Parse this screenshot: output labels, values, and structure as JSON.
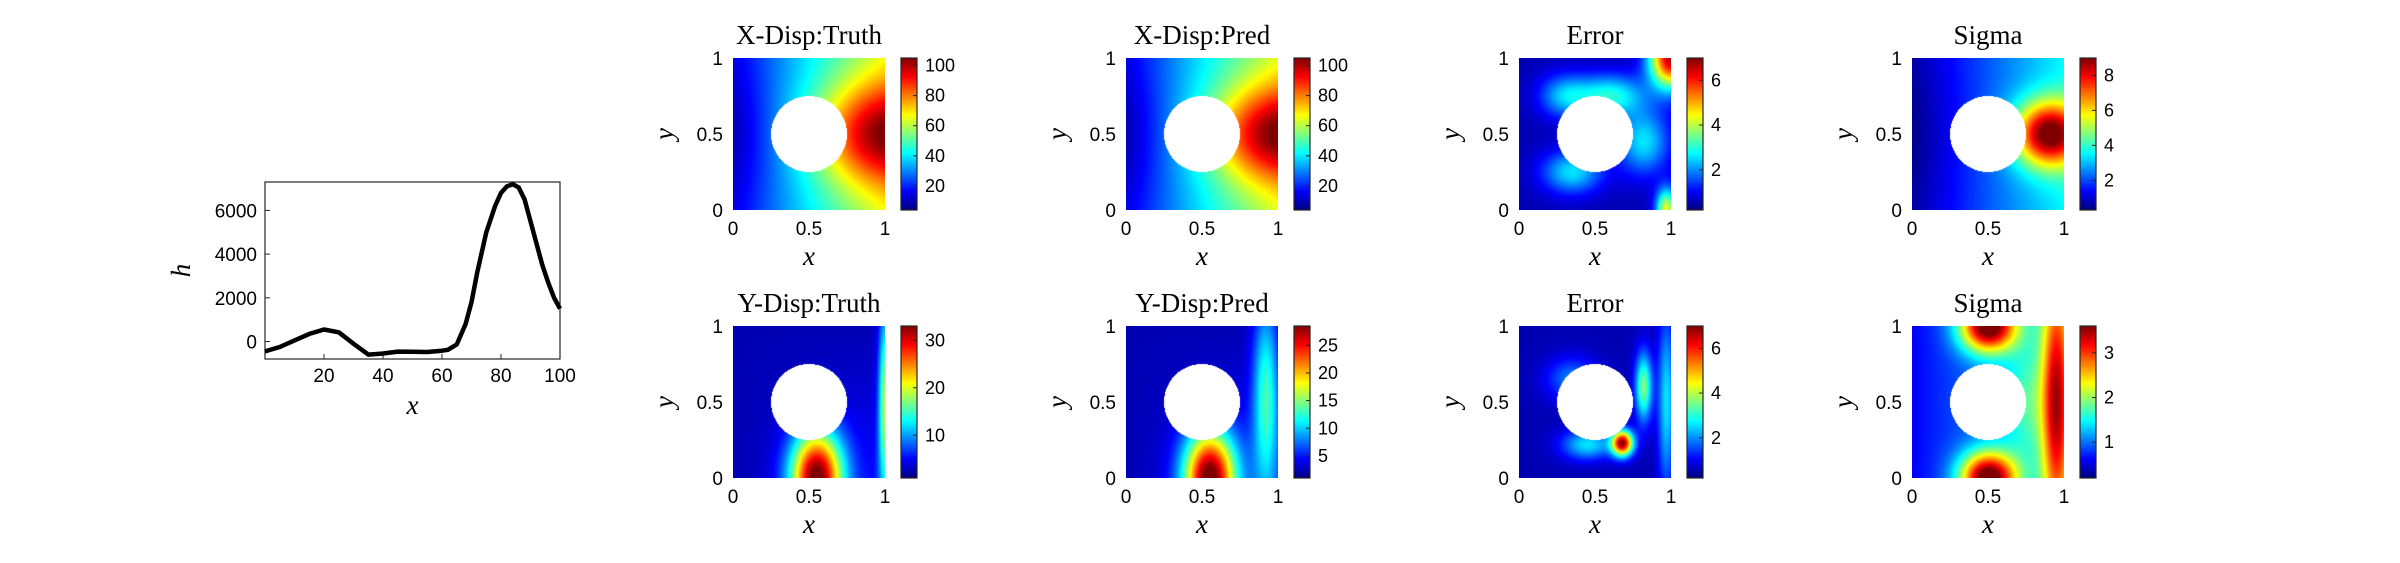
{
  "chart_data": [
    {
      "type": "line",
      "title": "",
      "xlabel": "x",
      "ylabel": "h",
      "xlim": [
        0,
        100
      ],
      "ylim": [
        -800,
        7300
      ],
      "xticks": [
        "20",
        "40",
        "60",
        "80",
        "100"
      ],
      "yticks": [
        "0",
        "2000",
        "4000",
        "6000"
      ],
      "series": [
        {
          "color": "#000000",
          "x": [
            0,
            5,
            10,
            15,
            20,
            25,
            30,
            35,
            40,
            45,
            50,
            55,
            60,
            62,
            65,
            68,
            70,
            72,
            75,
            78,
            80,
            82,
            84,
            86,
            88,
            90,
            92,
            94,
            96,
            98,
            100
          ],
          "y": [
            -450,
            -250,
            50,
            350,
            550,
            420,
            -100,
            -600,
            -550,
            -460,
            -470,
            -480,
            -420,
            -380,
            -130,
            800,
            1800,
            3200,
            5000,
            6200,
            6800,
            7100,
            7200,
            7050,
            6500,
            5500,
            4500,
            3500,
            2700,
            2000,
            1500
          ]
        }
      ]
    },
    {
      "type": "heatmap",
      "title": "X-Disp:Truth",
      "field": "xdisp_truth",
      "xlabel": "x",
      "ylabel": "y",
      "xlim": [
        0,
        1
      ],
      "ylim": [
        0,
        1
      ],
      "xticks": [
        "0",
        "0.5",
        "1"
      ],
      "yticks": [
        "0",
        "0.5",
        "1"
      ],
      "colormap": "jet",
      "clim": [
        4,
        105
      ],
      "colorbar_ticks": [
        20,
        40,
        60,
        80,
        100
      ],
      "hole": {
        "center": [
          0.5,
          0.5
        ],
        "radius": 0.25
      }
    },
    {
      "type": "heatmap",
      "title": "X-Disp:Pred",
      "field": "xdisp_pred",
      "xlabel": "x",
      "ylabel": "y",
      "xlim": [
        0,
        1
      ],
      "ylim": [
        0,
        1
      ],
      "xticks": [
        "0",
        "0.5",
        "1"
      ],
      "yticks": [
        "0",
        "0.5",
        "1"
      ],
      "colormap": "jet",
      "clim": [
        4,
        105
      ],
      "colorbar_ticks": [
        20,
        40,
        60,
        80,
        100
      ],
      "hole": {
        "center": [
          0.5,
          0.5
        ],
        "radius": 0.25
      }
    },
    {
      "type": "heatmap",
      "title": "Error",
      "field": "xdisp_error",
      "xlabel": "x",
      "ylabel": "y",
      "xlim": [
        0,
        1
      ],
      "ylim": [
        0,
        1
      ],
      "xticks": [
        "0",
        "0.5",
        "1"
      ],
      "yticks": [
        "0",
        "0.5",
        "1"
      ],
      "colormap": "jet",
      "clim": [
        0.2,
        7
      ],
      "colorbar_ticks": [
        2,
        4,
        6
      ],
      "hole": {
        "center": [
          0.5,
          0.5
        ],
        "radius": 0.25
      }
    },
    {
      "type": "heatmap",
      "title": "Sigma",
      "field": "xdisp_sigma",
      "xlabel": "x",
      "ylabel": "y",
      "xlim": [
        0,
        1
      ],
      "ylim": [
        0,
        1
      ],
      "xticks": [
        "0",
        "0.5",
        "1"
      ],
      "yticks": [
        "0",
        "0.5",
        "1"
      ],
      "colormap": "jet",
      "clim": [
        0.3,
        9
      ],
      "colorbar_ticks": [
        2,
        4,
        6,
        8
      ],
      "hole": {
        "center": [
          0.5,
          0.5
        ],
        "radius": 0.25
      }
    },
    {
      "type": "heatmap",
      "title": "Y-Disp:Truth",
      "field": "ydisp_truth",
      "xlabel": "x",
      "ylabel": "y",
      "xlim": [
        0,
        1
      ],
      "ylim": [
        0,
        1
      ],
      "xticks": [
        "0",
        "0.5",
        "1"
      ],
      "yticks": [
        "0",
        "0.5",
        "1"
      ],
      "colormap": "jet",
      "clim": [
        1,
        33
      ],
      "colorbar_ticks": [
        10,
        20,
        30
      ],
      "hole": {
        "center": [
          0.5,
          0.5
        ],
        "radius": 0.25
      }
    },
    {
      "type": "heatmap",
      "title": "Y-Disp:Pred",
      "field": "ydisp_pred",
      "xlabel": "x",
      "ylabel": "y",
      "xlim": [
        0,
        1
      ],
      "ylim": [
        0,
        1
      ],
      "xticks": [
        "0",
        "0.5",
        "1"
      ],
      "yticks": [
        "0",
        "0.5",
        "1"
      ],
      "colormap": "jet",
      "clim": [
        1,
        28.5
      ],
      "colorbar_ticks": [
        5,
        10,
        15,
        20,
        25
      ],
      "hole": {
        "center": [
          0.5,
          0.5
        ],
        "radius": 0.25
      }
    },
    {
      "type": "heatmap",
      "title": "Error",
      "field": "ydisp_error",
      "xlabel": "x",
      "ylabel": "y",
      "xlim": [
        0,
        1
      ],
      "ylim": [
        0,
        1
      ],
      "xticks": [
        "0",
        "0.5",
        "1"
      ],
      "yticks": [
        "0",
        "0.5",
        "1"
      ],
      "colormap": "jet",
      "clim": [
        0.2,
        7
      ],
      "colorbar_ticks": [
        2,
        4,
        6
      ],
      "hole": {
        "center": [
          0.5,
          0.5
        ],
        "radius": 0.25
      }
    },
    {
      "type": "heatmap",
      "title": "Sigma",
      "field": "ydisp_sigma",
      "xlabel": "x",
      "ylabel": "y",
      "xlim": [
        0,
        1
      ],
      "ylim": [
        0,
        1
      ],
      "xticks": [
        "0",
        "0.5",
        "1"
      ],
      "yticks": [
        "0",
        "0.5",
        "1"
      ],
      "colormap": "jet",
      "clim": [
        0.2,
        3.6
      ],
      "colorbar_ticks": [
        1,
        2,
        3
      ],
      "hole": {
        "center": [
          0.5,
          0.5
        ],
        "radius": 0.25
      }
    }
  ]
}
